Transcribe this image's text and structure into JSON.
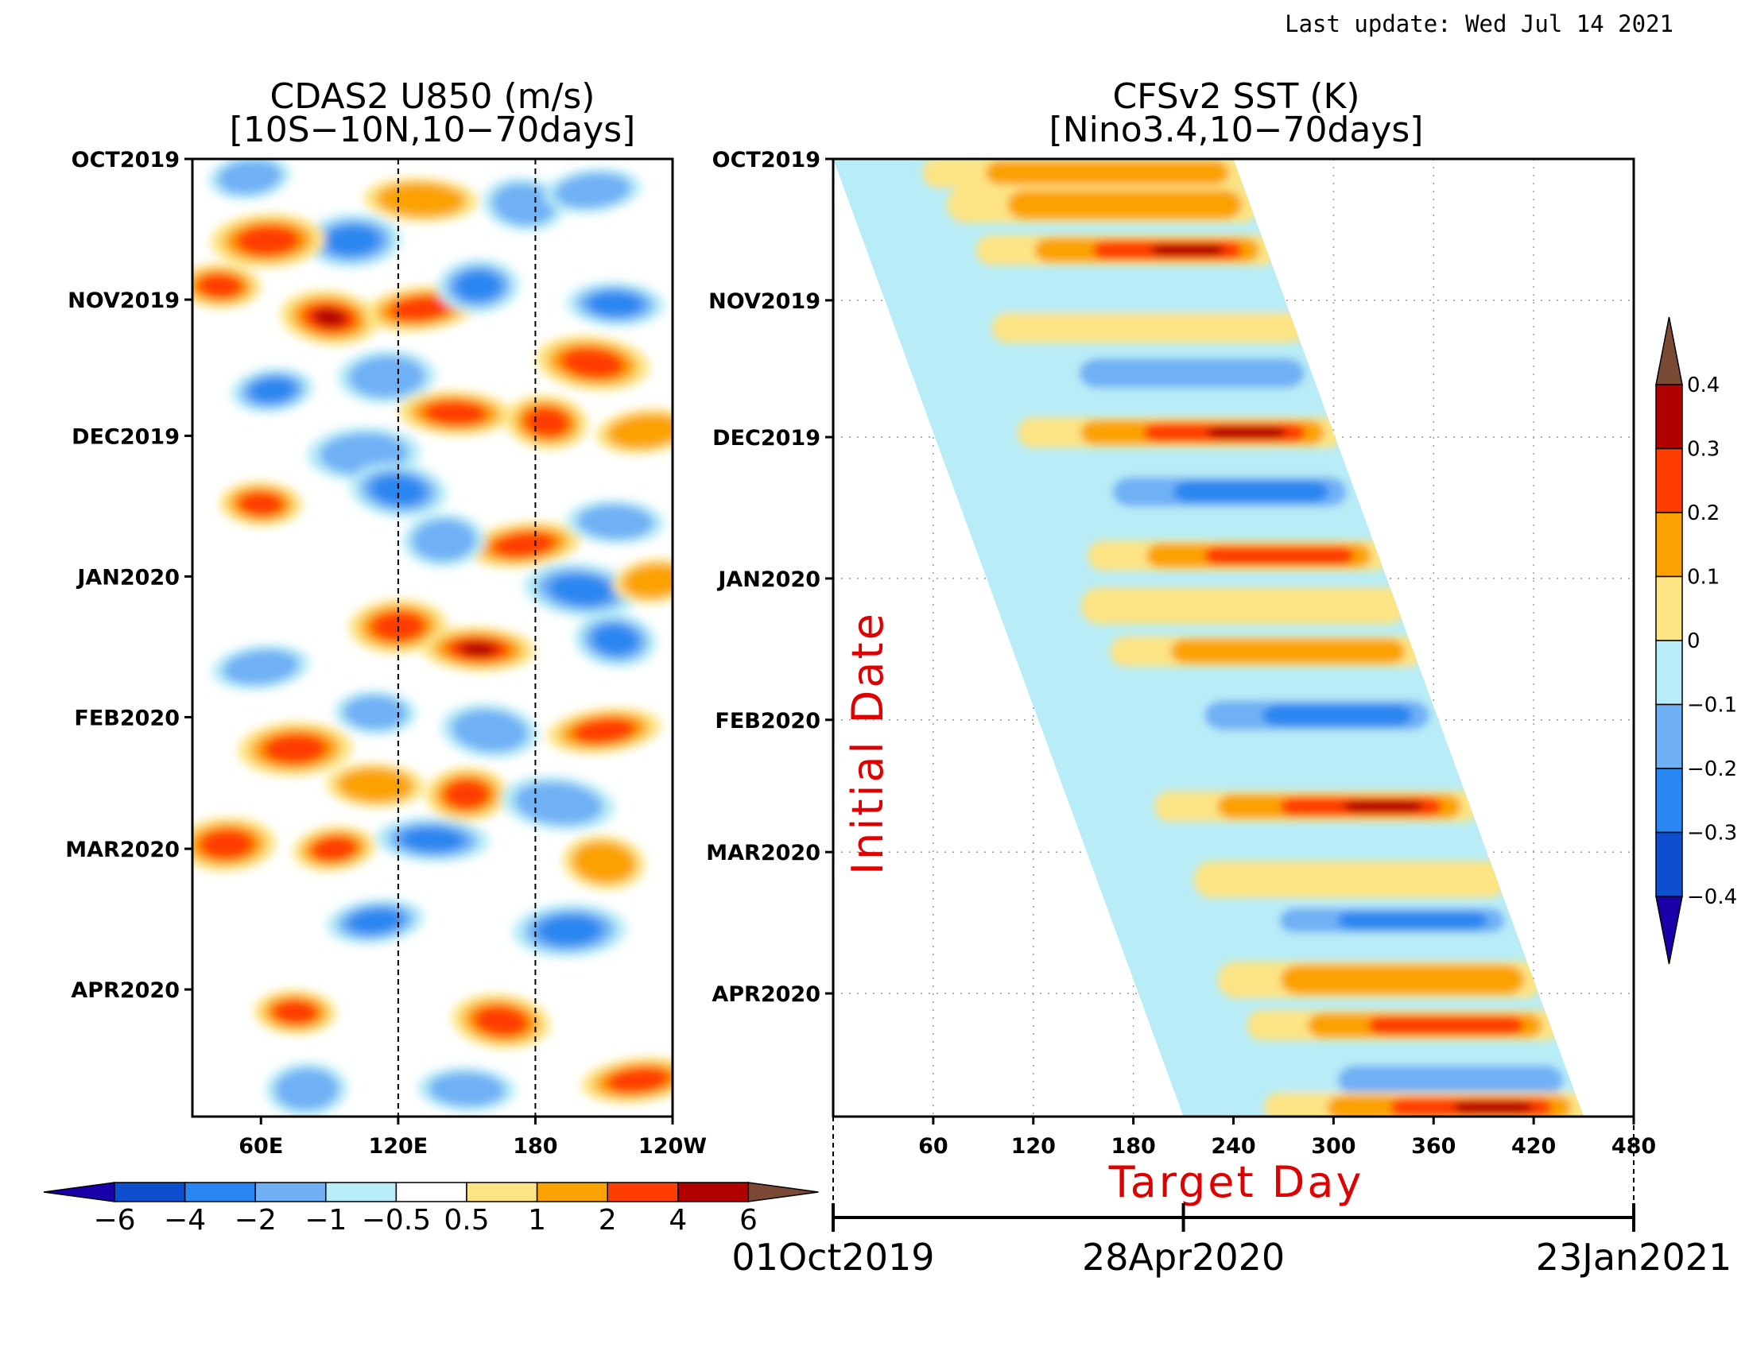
{
  "header": {
    "last_update": "Last update: Wed Jul 14 2021"
  },
  "colors": {
    "neg": [
      "#0d4fcf",
      "#2a86f0",
      "#6fb0f5",
      "#b8ecf6"
    ],
    "zero": "#ffffff",
    "pos": [
      "#fde484",
      "#fba200",
      "#ff3d00",
      "#b00000"
    ],
    "under": "#1a00a8",
    "over": "#7a4a35"
  },
  "chart_data": [
    {
      "type": "heatmap",
      "title": "CDAS2 U850 (m/s)",
      "subtitle": "[10S−10N,10−70days]",
      "x_ticks": [
        "60E",
        "120E",
        "180",
        "120W"
      ],
      "x_tick_lon": [
        60,
        120,
        180,
        240
      ],
      "x_range": [
        30,
        240
      ],
      "y_ticks": [
        "OCT2019",
        "NOV2019",
        "DEC2019",
        "JAN2020",
        "FEB2020",
        "MAR2020",
        "APR2020"
      ],
      "y_tick_day": [
        0,
        31,
        61,
        92,
        123,
        152,
        183
      ],
      "y_range_days": [
        0,
        211
      ],
      "reference_lines_lon": [
        120,
        180
      ],
      "colorbar": {
        "labels": [
          "−6",
          "−4",
          "−2",
          "−1",
          "−0.5",
          "0.5",
          "1",
          "2",
          "4",
          "6"
        ],
        "levels": [
          -6,
          -4,
          -2,
          -1,
          -0.5,
          0.5,
          1,
          2,
          4,
          6
        ]
      },
      "features": [
        {
          "lon": 55,
          "day": 4,
          "value": -1.5
        },
        {
          "lon": 100,
          "day": 18,
          "value": -2
        },
        {
          "lon": 130,
          "day": 9,
          "value": 1.5
        },
        {
          "lon": 175,
          "day": 10,
          "value": -1.5
        },
        {
          "lon": 205,
          "day": 7,
          "value": -1.5
        },
        {
          "lon": 63,
          "day": 18,
          "value": 3
        },
        {
          "lon": 42,
          "day": 28,
          "value": 2
        },
        {
          "lon": 90,
          "day": 35,
          "value": 4.5
        },
        {
          "lon": 130,
          "day": 33,
          "value": 3
        },
        {
          "lon": 155,
          "day": 28,
          "value": -2
        },
        {
          "lon": 215,
          "day": 32,
          "value": -2
        },
        {
          "lon": 205,
          "day": 45,
          "value": 2.5
        },
        {
          "lon": 65,
          "day": 51,
          "value": -2
        },
        {
          "lon": 115,
          "day": 48,
          "value": -1.5
        },
        {
          "lon": 145,
          "day": 56,
          "value": 2.5
        },
        {
          "lon": 185,
          "day": 58,
          "value": 2
        },
        {
          "lon": 228,
          "day": 60,
          "value": 1.5
        },
        {
          "lon": 105,
          "day": 65,
          "value": -1.5
        },
        {
          "lon": 60,
          "day": 76,
          "value": 3
        },
        {
          "lon": 120,
          "day": 73,
          "value": -2
        },
        {
          "lon": 175,
          "day": 85,
          "value": 3
        },
        {
          "lon": 140,
          "day": 84,
          "value": -1.5
        },
        {
          "lon": 215,
          "day": 80,
          "value": -1.5
        },
        {
          "lon": 200,
          "day": 95,
          "value": -3
        },
        {
          "lon": 232,
          "day": 93,
          "value": 1.5
        },
        {
          "lon": 120,
          "day": 103,
          "value": 2.5
        },
        {
          "lon": 155,
          "day": 108,
          "value": 4.5
        },
        {
          "lon": 215,
          "day": 106,
          "value": -2.5
        },
        {
          "lon": 60,
          "day": 112,
          "value": -1.5
        },
        {
          "lon": 75,
          "day": 130,
          "value": 3
        },
        {
          "lon": 110,
          "day": 122,
          "value": -1.5
        },
        {
          "lon": 160,
          "day": 126,
          "value": -1.5
        },
        {
          "lon": 210,
          "day": 126,
          "value": 3
        },
        {
          "lon": 150,
          "day": 140,
          "value": 3
        },
        {
          "lon": 110,
          "day": 138,
          "value": 1.5
        },
        {
          "lon": 190,
          "day": 142,
          "value": -1.5
        },
        {
          "lon": 92,
          "day": 152,
          "value": 2.5
        },
        {
          "lon": 45,
          "day": 151,
          "value": 2
        },
        {
          "lon": 135,
          "day": 150,
          "value": -2
        },
        {
          "lon": 210,
          "day": 155,
          "value": 1.5
        },
        {
          "lon": 110,
          "day": 168,
          "value": -2
        },
        {
          "lon": 195,
          "day": 170,
          "value": -2
        },
        {
          "lon": 75,
          "day": 188,
          "value": 3.5
        },
        {
          "lon": 165,
          "day": 190,
          "value": 3.5
        },
        {
          "lon": 225,
          "day": 203,
          "value": 3
        },
        {
          "lon": 80,
          "day": 205,
          "value": -1.5
        },
        {
          "lon": 150,
          "day": 205,
          "value": -1.5
        }
      ]
    },
    {
      "type": "heatmap",
      "title": "CFSv2 SST (K)",
      "subtitle": "[Nino3.4,10−70days]",
      "x_ticks": [
        "60",
        "120",
        "180",
        "240",
        "300",
        "360",
        "420",
        "480"
      ],
      "x_tick_day": [
        60,
        120,
        180,
        240,
        300,
        360,
        420,
        480
      ],
      "x_range": [
        0,
        480
      ],
      "y_ticks": [
        "OCT2019",
        "NOV2019",
        "DEC2019",
        "JAN2020",
        "FEB2020",
        "MAR2020",
        "APR2020"
      ],
      "y_tick_day": [
        0,
        31,
        61,
        92,
        123,
        152,
        183
      ],
      "y_range_days": [
        0,
        210
      ],
      "forecast_lead_days": [
        0,
        240
      ],
      "xlabel": "Target Day",
      "ylabel": "Initial Date",
      "date_axis": {
        "labels": [
          "01Oct2019",
          "28Apr2020",
          "23Jan2021"
        ],
        "day": [
          0,
          210,
          480
        ]
      },
      "colorbar": {
        "labels": [
          "0.4",
          "0.3",
          "0.2",
          "0.1",
          "0",
          "−0.1",
          "−0.2",
          "−0.3",
          "−0.4"
        ],
        "levels": [
          0.4,
          0.3,
          0.2,
          0.1,
          0,
          -0.1,
          -0.2,
          -0.3,
          -0.4
        ]
      },
      "bands": [
        {
          "init_day": 3,
          "value": 0.12
        },
        {
          "init_day": 10,
          "value": 0.15
        },
        {
          "init_day": 20,
          "value": 0.32
        },
        {
          "init_day": 30,
          "value": -0.05
        },
        {
          "init_day": 37,
          "value": 0.05
        },
        {
          "init_day": 47,
          "value": -0.15
        },
        {
          "init_day": 60,
          "value": 0.32
        },
        {
          "init_day": 73,
          "value": -0.28
        },
        {
          "init_day": 87,
          "value": 0.22
        },
        {
          "init_day": 98,
          "value": 0.08
        },
        {
          "init_day": 108,
          "value": 0.12
        },
        {
          "init_day": 122,
          "value": -0.22
        },
        {
          "init_day": 142,
          "value": 0.34
        },
        {
          "init_day": 158,
          "value": 0.05
        },
        {
          "init_day": 167,
          "value": -0.26
        },
        {
          "init_day": 180,
          "value": 0.12
        },
        {
          "init_day": 190,
          "value": 0.22
        },
        {
          "init_day": 202,
          "value": -0.12
        },
        {
          "init_day": 208,
          "value": 0.3
        }
      ]
    }
  ]
}
